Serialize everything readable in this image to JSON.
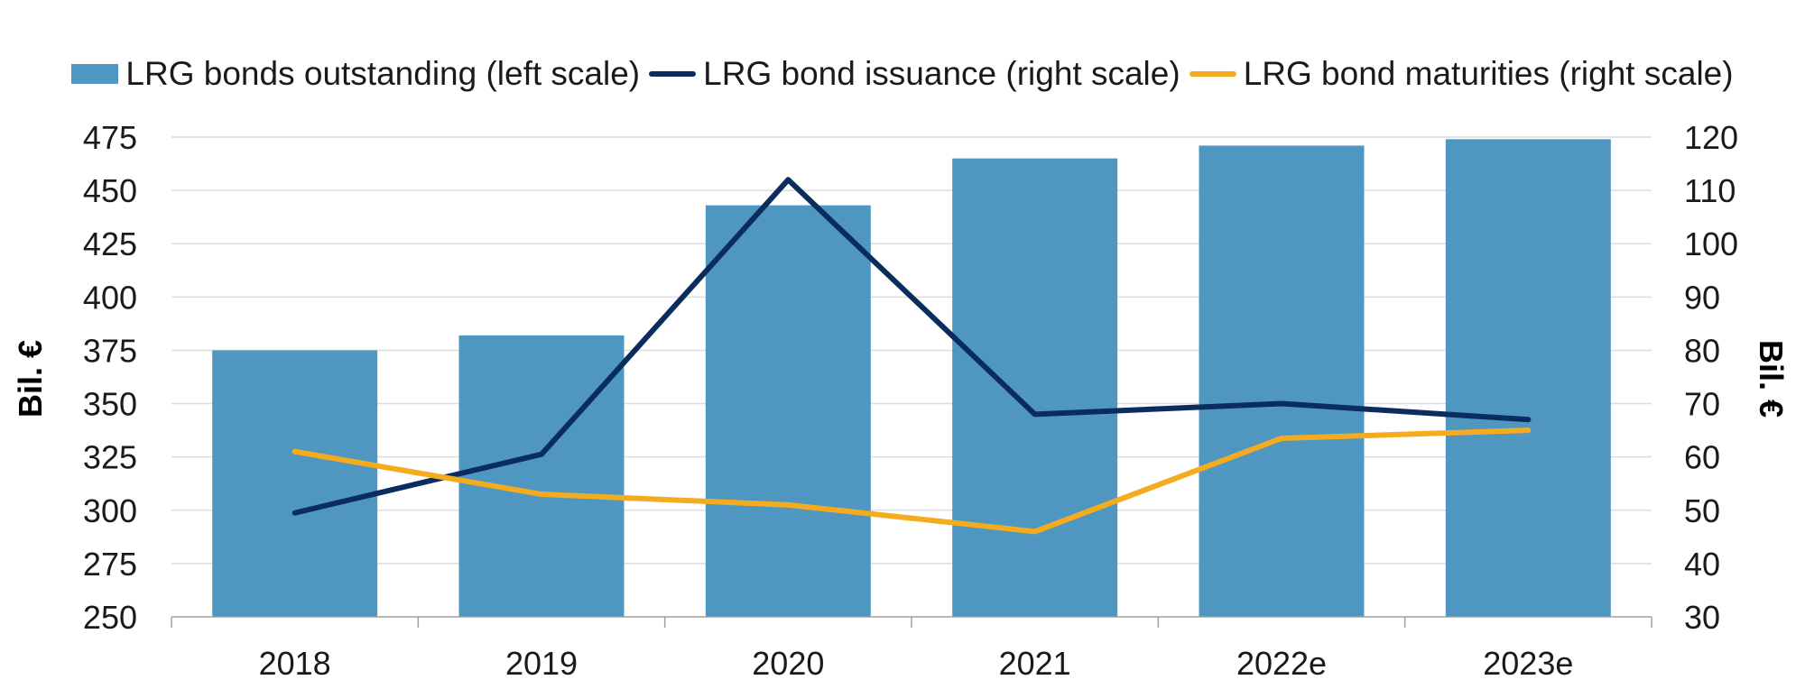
{
  "chart_data": {
    "type": "bar",
    "categories": [
      "2018",
      "2019",
      "2020",
      "2021",
      "2022e",
      "2023e"
    ],
    "series": [
      {
        "name": "LRG bonds outstanding (left scale)",
        "type": "bar",
        "axis": "left",
        "color": "#4f97c0",
        "values": [
          375,
          382,
          443,
          465,
          471,
          474
        ]
      },
      {
        "name": "LRG bond issuance (right scale)",
        "type": "line",
        "axis": "right",
        "color": "#0b2d5e",
        "values": [
          49.5,
          60.5,
          112,
          68,
          70,
          67
        ]
      },
      {
        "name": "LRG bond maturities (right scale)",
        "type": "line",
        "axis": "right",
        "color": "#f5ab1e",
        "values": [
          61,
          53,
          51,
          46,
          63.5,
          65
        ]
      }
    ],
    "y_left": {
      "label": "Bil. €",
      "ylim": [
        250,
        475
      ],
      "ticks": [
        "250",
        "275",
        "300",
        "325",
        "350",
        "375",
        "400",
        "425",
        "450",
        "475"
      ]
    },
    "y_right": {
      "label": "Bil. €",
      "ylim": [
        30,
        120
      ],
      "ticks": [
        "30",
        "40",
        "50",
        "60",
        "70",
        "80",
        "90",
        "100",
        "110",
        "120"
      ]
    },
    "grid": true,
    "legend": "top"
  }
}
